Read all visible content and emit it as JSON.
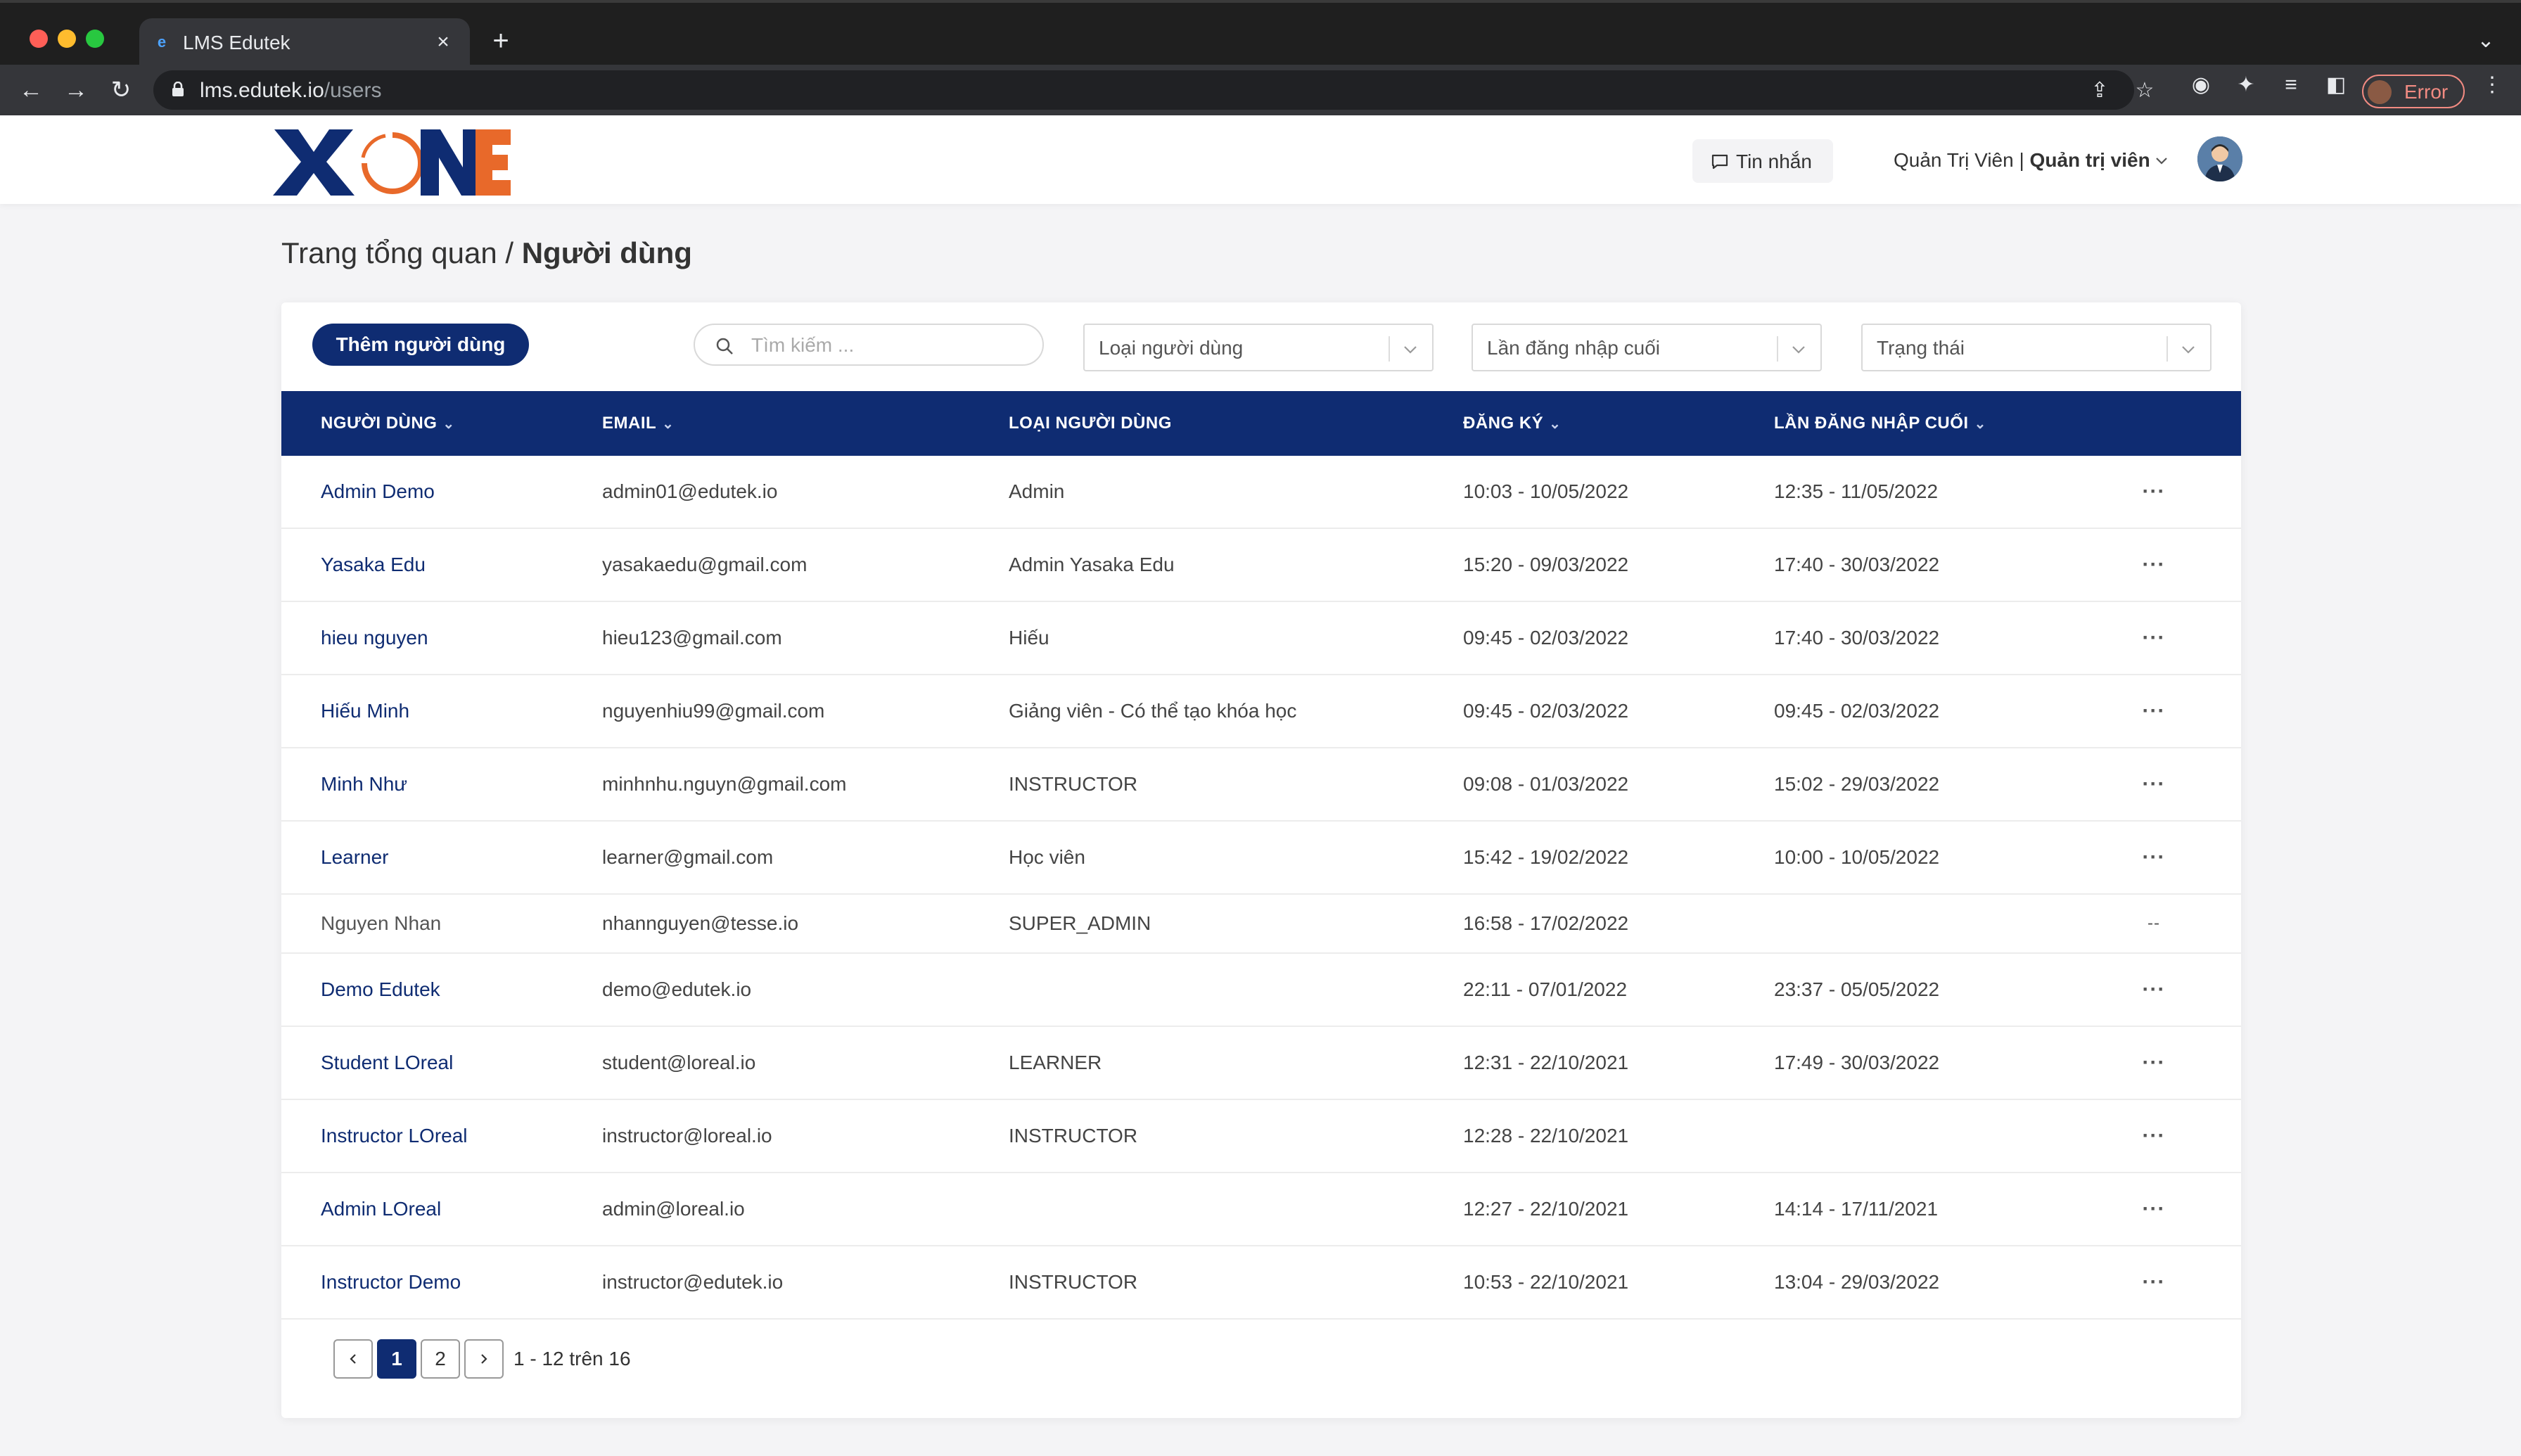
{
  "browser": {
    "tab_title": "LMS Edutek",
    "url_host": "lms.edutek.io",
    "url_path": "/users",
    "error_label": "Error"
  },
  "header": {
    "logo_text": "XONE",
    "messages_label": "Tin nhắn",
    "user_name": "Quản Trị Viên",
    "user_role": "Quản trị viên"
  },
  "breadcrumb": {
    "parent": "Trang tổng quan",
    "separator": "/",
    "current": "Người dùng"
  },
  "toolbar": {
    "add_user_label": "Thêm người dùng",
    "search_placeholder": "Tìm kiếm ...",
    "filter_user_type": "Loại người dùng",
    "filter_last_login": "Lần đăng nhập cuối",
    "filter_status": "Trạng thái"
  },
  "table": {
    "columns": [
      "NGƯỜI DÙNG",
      "EMAIL",
      "LOẠI NGƯỜI DÙNG",
      "ĐĂNG KÝ",
      "LẦN ĐĂNG NHẬP CUỐI"
    ],
    "rows": [
      {
        "name": "Admin Demo",
        "email": "admin01@edutek.io",
        "type": "Admin",
        "registered": "10:03 - 10/05/2022",
        "last_login": "12:35 - 11/05/2022",
        "menu": "···"
      },
      {
        "name": "Yasaka Edu",
        "email": "yasakaedu@gmail.com",
        "type": "Admin Yasaka Edu",
        "registered": "15:20 - 09/03/2022",
        "last_login": "17:40 - 30/03/2022",
        "menu": "···"
      },
      {
        "name": "hieu nguyen",
        "email": "hieu123@gmail.com",
        "type": "Hiếu",
        "registered": "09:45 - 02/03/2022",
        "last_login": "17:40 - 30/03/2022",
        "menu": "···"
      },
      {
        "name": "Hiếu Minh",
        "email": "nguyenhiu99@gmail.com",
        "type": "Giảng viên - Có thể tạo khóa học",
        "registered": "09:45 - 02/03/2022",
        "last_login": "09:45 - 02/03/2022",
        "menu": "···"
      },
      {
        "name": "Minh Như",
        "email": "minhnhu.nguyn@gmail.com",
        "type": "INSTRUCTOR",
        "registered": "09:08 - 01/03/2022",
        "last_login": "15:02 - 29/03/2022",
        "menu": "···"
      },
      {
        "name": "Learner",
        "email": "learner@gmail.com",
        "type": "Học viên",
        "registered": "15:42 - 19/02/2022",
        "last_login": "10:00 - 10/05/2022",
        "menu": "···"
      },
      {
        "name": "Nguyen Nhan",
        "email": "nhannguyen@tesse.io",
        "type": "SUPER_ADMIN",
        "registered": "16:58 - 17/02/2022",
        "last_login": "",
        "menu": "--"
      },
      {
        "name": "Demo Edutek",
        "email": "demo@edutek.io",
        "type": "",
        "registered": "22:11 - 07/01/2022",
        "last_login": "23:37 - 05/05/2022",
        "menu": "···"
      },
      {
        "name": "Student LOreal",
        "email": "student@loreal.io",
        "type": "LEARNER",
        "registered": "12:31 - 22/10/2021",
        "last_login": "17:49 - 30/03/2022",
        "menu": "···"
      },
      {
        "name": "Instructor LOreal",
        "email": "instructor@loreal.io",
        "type": "INSTRUCTOR",
        "registered": "12:28 - 22/10/2021",
        "last_login": "",
        "menu": "···"
      },
      {
        "name": "Admin LOreal",
        "email": "admin@loreal.io",
        "type": "",
        "registered": "12:27 - 22/10/2021",
        "last_login": "14:14 - 17/11/2021",
        "menu": "···"
      },
      {
        "name": "Instructor Demo",
        "email": "instructor@edutek.io",
        "type": "INSTRUCTOR",
        "registered": "10:53 - 22/10/2021",
        "last_login": "13:04 - 29/03/2022",
        "menu": "···"
      }
    ]
  },
  "pagination": {
    "pages": [
      "1",
      "2"
    ],
    "active_page": "1",
    "info": "1 - 12 trên 16"
  },
  "colors": {
    "primary_navy": "#0f2c72",
    "logo_orange": "#e8692a"
  }
}
